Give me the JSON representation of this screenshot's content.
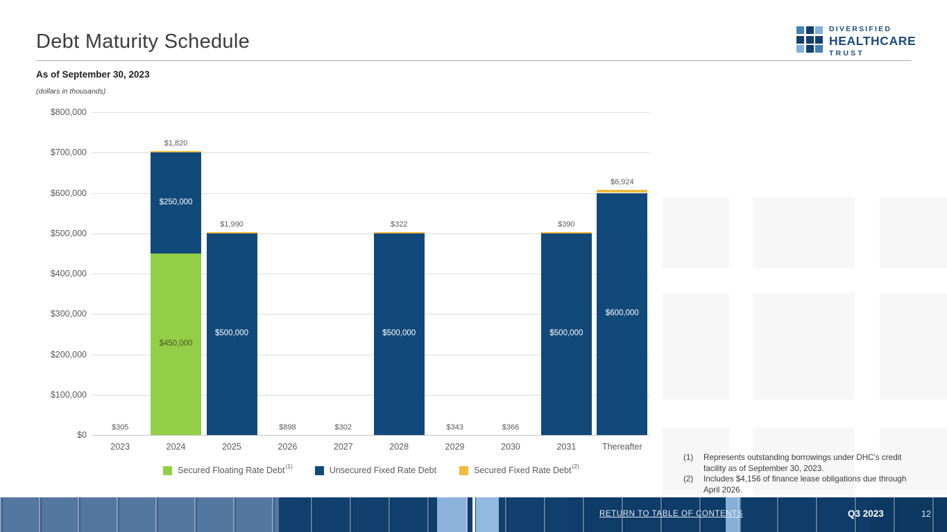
{
  "header": {
    "title": "Debt Maturity Schedule",
    "subtitle": "As of September 30, 2023",
    "units_note": "(dollars in thousands)"
  },
  "logo": {
    "line1": "DIVERSIFIED",
    "line2": "HEALTHCARE",
    "line3": "TRUST"
  },
  "chart_data": {
    "type": "bar",
    "stacked": true,
    "title": "Debt Maturity Schedule",
    "units": "dollars in thousands",
    "ylim": [
      0,
      800000
    ],
    "ytick_step": 100000,
    "yticks": [
      "$0",
      "$100,000",
      "$200,000",
      "$300,000",
      "$400,000",
      "$500,000",
      "$600,000",
      "$700,000",
      "$800,000"
    ],
    "categories": [
      "2023",
      "2024",
      "2025",
      "2026",
      "2027",
      "2028",
      "2029",
      "2030",
      "2031",
      "Thereafter"
    ],
    "colors": {
      "green": "#94CE47",
      "navy": "#11497B",
      "yellow": "#F3BA40"
    },
    "series": [
      {
        "name": "Secured Floating Rate Debt",
        "color_key": "green",
        "values": [
          0,
          450000,
          0,
          0,
          0,
          0,
          0,
          0,
          0,
          0
        ]
      },
      {
        "name": "Unsecured Fixed Rate Debt",
        "color_key": "navy",
        "values": [
          0,
          250000,
          500000,
          0,
          0,
          500000,
          0,
          0,
          500000,
          600000
        ]
      },
      {
        "name": "Secured Fixed Rate Debt",
        "color_key": "yellow",
        "values": [
          305,
          1820,
          1990,
          898,
          302,
          322,
          343,
          366,
          390,
          6924
        ]
      }
    ],
    "top_labels": [
      "$305",
      "$1,820",
      "$1,990",
      "$898",
      "$302",
      "$322",
      "$343",
      "$366",
      "$390",
      "$6,924"
    ],
    "inside_labels": [
      {
        "cat_index": 1,
        "series_index": 0,
        "text": "$450,000",
        "color": "#4A5426"
      },
      {
        "cat_index": 1,
        "series_index": 1,
        "text": "$250,000",
        "color": "#FFFFFF"
      },
      {
        "cat_index": 2,
        "series_index": 1,
        "text": "$500,000",
        "color": "#FFFFFF"
      },
      {
        "cat_index": 5,
        "series_index": 1,
        "text": "$500,000",
        "color": "#FFFFFF"
      },
      {
        "cat_index": 8,
        "series_index": 1,
        "text": "$500,000",
        "color": "#FFFFFF"
      },
      {
        "cat_index": 9,
        "series_index": 1,
        "text": "$600,000",
        "color": "#FFFFFF"
      }
    ],
    "legend_position": "bottom",
    "grid": true
  },
  "legend": {
    "items": [
      {
        "label": "Secured Floating Rate Debt",
        "sup": "(1)",
        "color_key": "green"
      },
      {
        "label": "Unsecured Fixed Rate Debt",
        "sup": "",
        "color_key": "navy"
      },
      {
        "label": "Secured Fixed Rate Debt",
        "sup": "(2)",
        "color_key": "yellow"
      }
    ]
  },
  "footnotes": {
    "items": [
      {
        "num": "(1)",
        "text": "Represents outstanding borrowings under DHC's credit facility as of September 30, 2023."
      },
      {
        "num": "(2)",
        "text": "Includes $4,156 of finance lease obligations due through April 2026."
      }
    ]
  },
  "footer": {
    "link": "RETURN TO TABLE OF CONTENTS",
    "quarter": "Q3 2023",
    "page": "12"
  }
}
